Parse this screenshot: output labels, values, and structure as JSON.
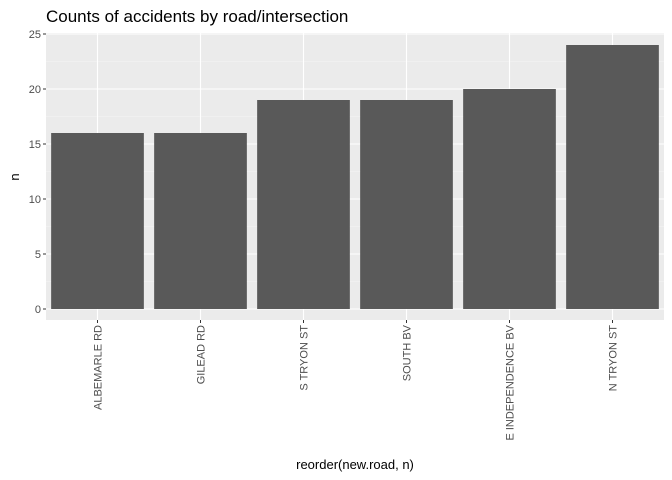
{
  "chart_data": {
    "type": "bar",
    "title": "Counts of accidents by road/intersection",
    "xlabel": "reorder(new.road, n)",
    "ylabel": "n",
    "categories": [
      "ALBEMARLE RD",
      "GILEAD RD",
      "S TRYON ST",
      "SOUTH BV",
      "E INDEPENDENCE BV",
      "N TRYON ST"
    ],
    "values": [
      16,
      16,
      19,
      19,
      20,
      24
    ],
    "ylim": [
      0,
      25
    ],
    "yticks": [
      0,
      5,
      10,
      15,
      20,
      25
    ],
    "ytick_labels": [
      "0",
      "5",
      "10",
      "15",
      "20",
      "25"
    ],
    "grid": true,
    "x_tick_label_rotation": "vertical",
    "colors": {
      "bar": "#595959",
      "panel": "#ebebeb",
      "grid": "#ffffff"
    }
  }
}
